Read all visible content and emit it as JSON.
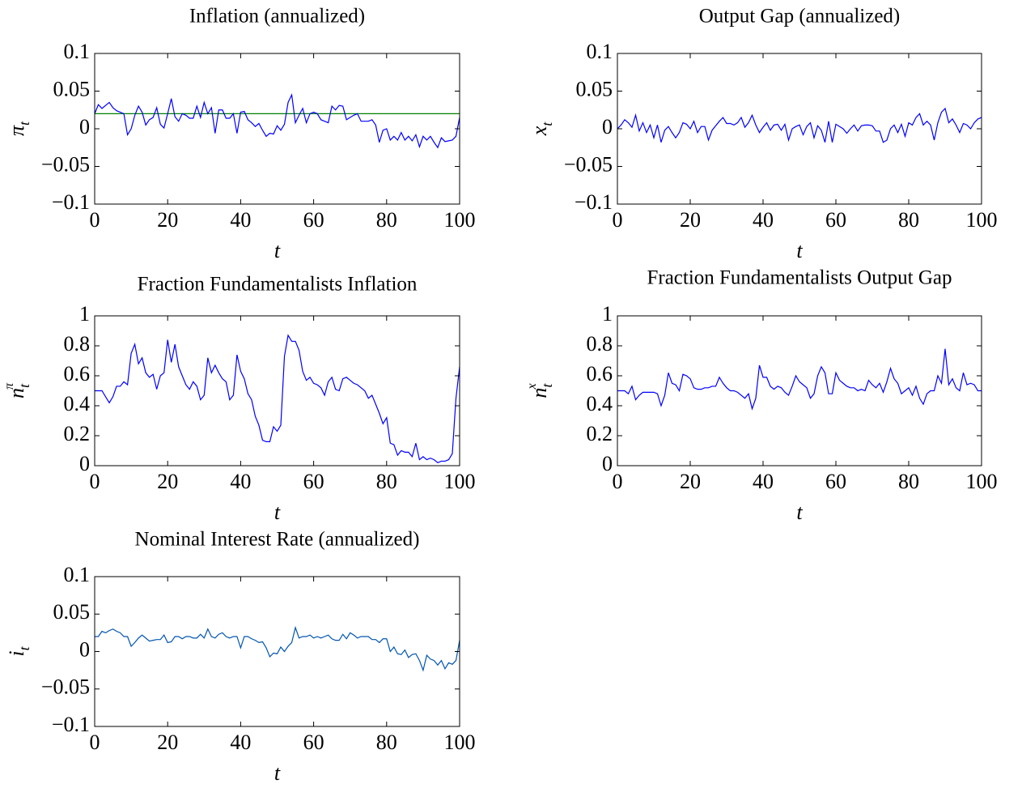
{
  "chart_data": [
    {
      "type": "line",
      "title": "Inflation (annualized)",
      "xlabel": "t",
      "ylabel": {
        "symbol": "π",
        "sub": "t"
      },
      "x": [
        0,
        1,
        2,
        3,
        4,
        5,
        6,
        7,
        8,
        9,
        10,
        11,
        12,
        13,
        14,
        15,
        16,
        17,
        18,
        19,
        20,
        21,
        22,
        23,
        24,
        25,
        26,
        27,
        28,
        29,
        30,
        31,
        32,
        33,
        34,
        35,
        36,
        37,
        38,
        39,
        40,
        41,
        42,
        43,
        44,
        45,
        46,
        47,
        48,
        49,
        50,
        51,
        52,
        53,
        54,
        55,
        56,
        57,
        58,
        59,
        60,
        61,
        62,
        63,
        64,
        65,
        66,
        67,
        68,
        69,
        70,
        71,
        72,
        73,
        74,
        75,
        76,
        77,
        78,
        79,
        80,
        81,
        82,
        83,
        84,
        85,
        86,
        87,
        88,
        89,
        90,
        91,
        92,
        93,
        94,
        95,
        96,
        97,
        98,
        99,
        100
      ],
      "series": [
        {
          "color": "#0000ff",
          "values": [
            0.02,
            0.032,
            0.027,
            0.031,
            0.035,
            0.028,
            0.024,
            0.022,
            0.02,
            -0.008,
            0.0,
            0.018,
            0.03,
            0.022,
            0.005,
            0.012,
            0.015,
            0.028,
            0.006,
            0.001,
            0.02,
            0.04,
            0.016,
            0.01,
            0.02,
            0.018,
            0.014,
            0.014,
            0.03,
            0.015,
            0.035,
            0.02,
            0.028,
            -0.006,
            0.025,
            0.025,
            0.014,
            0.014,
            0.02,
            -0.006,
            0.022,
            0.023,
            0.012,
            0.008,
            0.003,
            0.007,
            -0.002,
            -0.01,
            -0.006,
            -0.007,
            0.004,
            -0.002,
            0.006,
            0.035,
            0.045,
            0.008,
            0.018,
            0.027,
            0.008,
            0.02,
            0.022,
            0.02,
            0.012,
            0.01,
            0.008,
            0.03,
            0.025,
            0.031,
            0.03,
            0.012,
            0.015,
            0.018,
            0.02,
            0.01,
            0.01,
            0.01,
            0.012,
            0.005,
            -0.018,
            -0.002,
            0.0,
            -0.015,
            -0.01,
            -0.015,
            -0.005,
            -0.015,
            -0.01,
            -0.016,
            -0.008,
            -0.024,
            -0.01,
            -0.015,
            -0.01,
            -0.018,
            -0.025,
            -0.012,
            -0.017,
            -0.016,
            -0.015,
            -0.01,
            0.015
          ]
        }
      ],
      "reference_line": {
        "value": 0.02,
        "color": "#008000"
      },
      "xlim": [
        0,
        100
      ],
      "xticks": [
        0,
        20,
        40,
        60,
        80,
        100
      ],
      "ylim": [
        -0.1,
        0.1
      ],
      "yticks": [
        {
          "value": -0.1,
          "label": "−0.1"
        },
        {
          "value": -0.05,
          "label": "−0.05"
        },
        0,
        0.05,
        0.1
      ]
    },
    {
      "type": "line",
      "title": "Output Gap (annualized)",
      "xlabel": "t",
      "ylabel": {
        "symbol": "x",
        "sub": "t"
      },
      "x": [
        0,
        1,
        2,
        3,
        4,
        5,
        6,
        7,
        8,
        9,
        10,
        11,
        12,
        13,
        14,
        15,
        16,
        17,
        18,
        19,
        20,
        21,
        22,
        23,
        24,
        25,
        26,
        27,
        28,
        29,
        30,
        31,
        32,
        33,
        34,
        35,
        36,
        37,
        38,
        39,
        40,
        41,
        42,
        43,
        44,
        45,
        46,
        47,
        48,
        49,
        50,
        51,
        52,
        53,
        54,
        55,
        56,
        57,
        58,
        59,
        60,
        61,
        62,
        63,
        64,
        65,
        66,
        67,
        68,
        69,
        70,
        71,
        72,
        73,
        74,
        75,
        76,
        77,
        78,
        79,
        80,
        81,
        82,
        83,
        84,
        85,
        86,
        87,
        88,
        89,
        90,
        91,
        92,
        93,
        94,
        95,
        96,
        97,
        98,
        99,
        100
      ],
      "series": [
        {
          "color": "#0000ff",
          "values": [
            0.0,
            0.005,
            0.012,
            0.008,
            0.002,
            0.018,
            -0.003,
            0.008,
            -0.005,
            0.005,
            -0.012,
            0.005,
            -0.018,
            -0.002,
            0.003,
            -0.005,
            -0.012,
            -0.005,
            0.008,
            0.006,
            0.0,
            0.01,
            -0.005,
            0.003,
            0.003,
            -0.015,
            -0.002,
            0.004,
            0.01,
            0.015,
            0.007,
            0.007,
            0.005,
            0.008,
            0.015,
            0.002,
            0.008,
            0.018,
            0.005,
            -0.005,
            0.002,
            0.008,
            -0.002,
            0.005,
            0.006,
            -0.002,
            0.006,
            -0.015,
            0.0,
            0.003,
            0.005,
            -0.008,
            0.003,
            0.008,
            -0.012,
            0.004,
            -0.002,
            -0.018,
            0.01,
            -0.018,
            0.006,
            0.003,
            0.0,
            -0.006,
            0.0,
            0.005,
            -0.003,
            0.004,
            0.005,
            0.005,
            0.004,
            -0.003,
            -0.003,
            -0.018,
            -0.015,
            0.0,
            0.005,
            -0.005,
            0.006,
            -0.01,
            0.008,
            0.005,
            0.015,
            0.02,
            0.005,
            0.01,
            0.005,
            -0.015,
            0.008,
            0.022,
            0.027,
            0.008,
            0.013,
            0.005,
            -0.005,
            0.007,
            0.005,
            0.0,
            0.008,
            0.013,
            0.015
          ]
        }
      ],
      "xlim": [
        0,
        100
      ],
      "xticks": [
        0,
        20,
        40,
        60,
        80,
        100
      ],
      "ylim": [
        -0.1,
        0.1
      ],
      "yticks": [
        {
          "value": -0.1,
          "label": "−0.1"
        },
        {
          "value": -0.05,
          "label": "−0.05"
        },
        0,
        0.05,
        0.1
      ]
    },
    {
      "type": "line",
      "title": "Fraction Fundamentalists Inflation",
      "xlabel": "t",
      "ylabel": {
        "symbol": "n",
        "sub": "t",
        "sup": "π"
      },
      "x": [
        0,
        1,
        2,
        3,
        4,
        5,
        6,
        7,
        8,
        9,
        10,
        11,
        12,
        13,
        14,
        15,
        16,
        17,
        18,
        19,
        20,
        21,
        22,
        23,
        24,
        25,
        26,
        27,
        28,
        29,
        30,
        31,
        32,
        33,
        34,
        35,
        36,
        37,
        38,
        39,
        40,
        41,
        42,
        43,
        44,
        45,
        46,
        47,
        48,
        49,
        50,
        51,
        52,
        53,
        54,
        55,
        56,
        57,
        58,
        59,
        60,
        61,
        62,
        63,
        64,
        65,
        66,
        67,
        68,
        69,
        70,
        71,
        72,
        73,
        74,
        75,
        76,
        77,
        78,
        79,
        80,
        81,
        82,
        83,
        84,
        85,
        86,
        87,
        88,
        89,
        90,
        91,
        92,
        93,
        94,
        95,
        96,
        97,
        98,
        99,
        100
      ],
      "series": [
        {
          "color": "#0000ff",
          "values": [
            0.5,
            0.5,
            0.5,
            0.46,
            0.42,
            0.46,
            0.53,
            0.53,
            0.56,
            0.54,
            0.75,
            0.81,
            0.68,
            0.72,
            0.62,
            0.59,
            0.61,
            0.51,
            0.6,
            0.62,
            0.84,
            0.69,
            0.81,
            0.66,
            0.6,
            0.54,
            0.51,
            0.56,
            0.53,
            0.44,
            0.47,
            0.72,
            0.62,
            0.67,
            0.62,
            0.58,
            0.56,
            0.44,
            0.47,
            0.74,
            0.63,
            0.58,
            0.48,
            0.44,
            0.33,
            0.27,
            0.17,
            0.16,
            0.16,
            0.26,
            0.23,
            0.27,
            0.73,
            0.87,
            0.83,
            0.83,
            0.77,
            0.63,
            0.57,
            0.59,
            0.55,
            0.54,
            0.52,
            0.47,
            0.56,
            0.59,
            0.51,
            0.5,
            0.58,
            0.59,
            0.57,
            0.55,
            0.54,
            0.52,
            0.5,
            0.45,
            0.47,
            0.41,
            0.35,
            0.28,
            0.32,
            0.15,
            0.14,
            0.07,
            0.1,
            0.09,
            0.09,
            0.06,
            0.15,
            0.04,
            0.06,
            0.04,
            0.05,
            0.04,
            0.02,
            0.03,
            0.03,
            0.04,
            0.08,
            0.45,
            0.66
          ]
        }
      ],
      "xlim": [
        0,
        100
      ],
      "xticks": [
        0,
        20,
        40,
        60,
        80,
        100
      ],
      "ylim": [
        0,
        1
      ],
      "yticks": [
        0,
        0.2,
        0.4,
        0.6,
        0.8,
        1
      ]
    },
    {
      "type": "line",
      "title": "Fraction Fundamentalists Output Gap",
      "xlabel": "t",
      "ylabel": {
        "symbol": "n",
        "sub": "t",
        "sup": "x"
      },
      "x": [
        0,
        1,
        2,
        3,
        4,
        5,
        6,
        7,
        8,
        9,
        10,
        11,
        12,
        13,
        14,
        15,
        16,
        17,
        18,
        19,
        20,
        21,
        22,
        23,
        24,
        25,
        26,
        27,
        28,
        29,
        30,
        31,
        32,
        33,
        34,
        35,
        36,
        37,
        38,
        39,
        40,
        41,
        42,
        43,
        44,
        45,
        46,
        47,
        48,
        49,
        50,
        51,
        52,
        53,
        54,
        55,
        56,
        57,
        58,
        59,
        60,
        61,
        62,
        63,
        64,
        65,
        66,
        67,
        68,
        69,
        70,
        71,
        72,
        73,
        74,
        75,
        76,
        77,
        78,
        79,
        80,
        81,
        82,
        83,
        84,
        85,
        86,
        87,
        88,
        89,
        90,
        91,
        92,
        93,
        94,
        95,
        96,
        97,
        98,
        99,
        100
      ],
      "series": [
        {
          "color": "#0000ff",
          "values": [
            0.5,
            0.5,
            0.5,
            0.48,
            0.53,
            0.44,
            0.47,
            0.49,
            0.49,
            0.49,
            0.49,
            0.48,
            0.4,
            0.47,
            0.62,
            0.55,
            0.54,
            0.5,
            0.61,
            0.6,
            0.58,
            0.52,
            0.51,
            0.51,
            0.52,
            0.52,
            0.53,
            0.53,
            0.59,
            0.55,
            0.52,
            0.5,
            0.5,
            0.49,
            0.47,
            0.45,
            0.48,
            0.38,
            0.45,
            0.67,
            0.59,
            0.59,
            0.53,
            0.51,
            0.53,
            0.52,
            0.49,
            0.47,
            0.53,
            0.6,
            0.56,
            0.54,
            0.52,
            0.45,
            0.48,
            0.6,
            0.66,
            0.62,
            0.48,
            0.48,
            0.62,
            0.57,
            0.55,
            0.53,
            0.52,
            0.52,
            0.5,
            0.51,
            0.5,
            0.57,
            0.54,
            0.52,
            0.55,
            0.49,
            0.56,
            0.65,
            0.58,
            0.55,
            0.48,
            0.5,
            0.52,
            0.47,
            0.53,
            0.45,
            0.41,
            0.48,
            0.5,
            0.5,
            0.6,
            0.55,
            0.78,
            0.54,
            0.58,
            0.52,
            0.5,
            0.62,
            0.54,
            0.55,
            0.54,
            0.5,
            0.5
          ]
        }
      ],
      "xlim": [
        0,
        100
      ],
      "xticks": [
        0,
        20,
        40,
        60,
        80,
        100
      ],
      "ylim": [
        0,
        1
      ],
      "yticks": [
        0,
        0.2,
        0.4,
        0.6,
        0.8,
        1
      ]
    },
    {
      "type": "line",
      "title": "Nominal Interest Rate (annualized)",
      "xlabel": "t",
      "ylabel": {
        "symbol": "i",
        "sub": "t"
      },
      "x": [
        0,
        1,
        2,
        3,
        4,
        5,
        6,
        7,
        8,
        9,
        10,
        11,
        12,
        13,
        14,
        15,
        16,
        17,
        18,
        19,
        20,
        21,
        22,
        23,
        24,
        25,
        26,
        27,
        28,
        29,
        30,
        31,
        32,
        33,
        34,
        35,
        36,
        37,
        38,
        39,
        40,
        41,
        42,
        43,
        44,
        45,
        46,
        47,
        48,
        49,
        50,
        51,
        52,
        53,
        54,
        55,
        56,
        57,
        58,
        59,
        60,
        61,
        62,
        63,
        64,
        65,
        66,
        67,
        68,
        69,
        70,
        71,
        72,
        73,
        74,
        75,
        76,
        77,
        78,
        79,
        80,
        81,
        82,
        83,
        84,
        85,
        86,
        87,
        88,
        89,
        90,
        91,
        92,
        93,
        94,
        95,
        96,
        97,
        98,
        99,
        100
      ],
      "series": [
        {
          "color": "#0055b0",
          "values": [
            0.02,
            0.02,
            0.027,
            0.025,
            0.028,
            0.03,
            0.027,
            0.025,
            0.02,
            0.02,
            0.007,
            0.012,
            0.018,
            0.022,
            0.018,
            0.014,
            0.015,
            0.016,
            0.016,
            0.022,
            0.012,
            0.013,
            0.02,
            0.02,
            0.017,
            0.02,
            0.02,
            0.018,
            0.018,
            0.023,
            0.018,
            0.03,
            0.02,
            0.018,
            0.023,
            0.025,
            0.02,
            0.018,
            0.02,
            0.02,
            0.005,
            0.02,
            0.02,
            0.017,
            0.015,
            0.012,
            0.013,
            0.005,
            -0.007,
            -0.002,
            -0.003,
            0.006,
            0.0,
            0.007,
            0.012,
            0.032,
            0.018,
            0.02,
            0.02,
            0.022,
            0.018,
            0.02,
            0.018,
            0.02,
            0.022,
            0.017,
            0.015,
            0.015,
            0.023,
            0.017,
            0.025,
            0.022,
            0.018,
            0.02,
            0.02,
            0.02,
            0.016,
            0.016,
            0.012,
            0.017,
            0.017,
            0.0,
            0.006,
            -0.003,
            -0.004,
            0.002,
            -0.008,
            -0.004,
            -0.003,
            -0.012,
            -0.025,
            -0.005,
            -0.01,
            -0.012,
            -0.018,
            -0.012,
            -0.023,
            -0.015,
            -0.017,
            -0.012,
            0.015
          ]
        }
      ],
      "xlim": [
        0,
        100
      ],
      "xticks": [
        0,
        20,
        40,
        60,
        80,
        100
      ],
      "ylim": [
        -0.1,
        0.1
      ],
      "yticks": [
        {
          "value": -0.1,
          "label": "−0.1"
        },
        {
          "value": -0.05,
          "label": "−0.05"
        },
        0,
        0.05,
        0.1
      ]
    }
  ]
}
